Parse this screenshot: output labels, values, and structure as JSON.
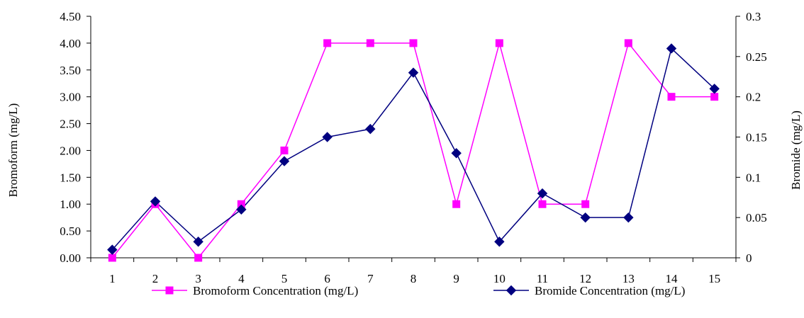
{
  "chart_data": {
    "type": "line",
    "categories": [
      "1",
      "2",
      "3",
      "4",
      "5",
      "6",
      "7",
      "8",
      "9",
      "10",
      "11",
      "12",
      "13",
      "14",
      "15"
    ],
    "y_left": {
      "label": "Bromoform  (mg/L)",
      "range": [
        0,
        4.5
      ],
      "ticks": [
        "0.00",
        "0.50",
        "1.00",
        "1.50",
        "2.00",
        "2.50",
        "3.00",
        "3.50",
        "4.00",
        "4.50"
      ]
    },
    "y_right": {
      "label": "Bromide  (mg/L)",
      "range": [
        0,
        0.3
      ],
      "ticks": [
        "0",
        "0.05",
        "0.1",
        "0.15",
        "0.2",
        "0.25",
        "0.3"
      ]
    },
    "grid": false,
    "legend_position": "bottom",
    "series": [
      {
        "name": "Bromoform Concentration (mg/L)",
        "axis": "left",
        "color": "#ff00ff",
        "marker": "square",
        "values": [
          0,
          1,
          0,
          1,
          2,
          4,
          4,
          4,
          1,
          4,
          1,
          1,
          4,
          3,
          3
        ]
      },
      {
        "name": "Bromide Concentration (mg/L)",
        "axis": "right",
        "color": "#000080",
        "marker": "diamond",
        "values": [
          0.01,
          0.07,
          0.02,
          0.06,
          0.12,
          0.15,
          0.16,
          0.23,
          0.13,
          0.02,
          0.08,
          0.05,
          0.05,
          0.26,
          0.21
        ]
      }
    ]
  }
}
